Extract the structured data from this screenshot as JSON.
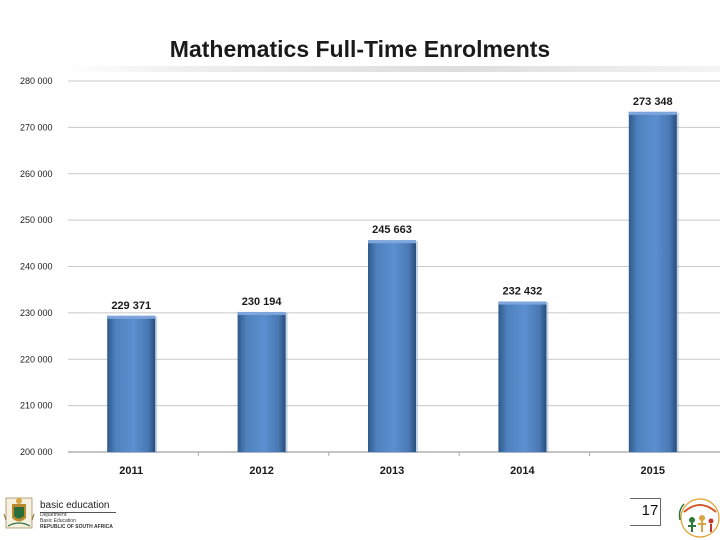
{
  "slide": {
    "title": "Mathematics Full-Time Enrolments",
    "page_number": "17"
  },
  "footer": {
    "dept_name": "basic education",
    "dept_lines": [
      "Department:",
      "Basic Education",
      "REPUBLIC OF SOUTH AFRICA"
    ],
    "coat_of_arms_icon": "coat-of-arms-icon",
    "anniversary_badge_icon": "anniversary-badge-icon"
  },
  "chart_data": {
    "type": "bar",
    "title": "Mathematics Full-Time Enrolments",
    "categories": [
      "2011",
      "2012",
      "2013",
      "2014",
      "2015"
    ],
    "values": [
      229371,
      230194,
      245663,
      232432,
      273348
    ],
    "data_labels": [
      "229 371",
      "230 194",
      "245 663",
      "232 432",
      "273 348"
    ],
    "ylim": [
      200000,
      280000
    ],
    "yticks": [
      200000,
      210000,
      220000,
      230000,
      240000,
      250000,
      260000,
      270000,
      280000
    ],
    "ytick_labels": [
      "200 000",
      "210 000",
      "220 000",
      "230 000",
      "240 000",
      "250 000",
      "260 000",
      "270 000",
      "280 000"
    ],
    "xlabel": "",
    "ylabel": "",
    "grid": true,
    "legend": "none",
    "colors": {
      "bar": "#4f81bd",
      "bar_dark": "#2f5a8e",
      "bar_light": "#7ea6dc",
      "grid": "#c8c8c8"
    }
  }
}
